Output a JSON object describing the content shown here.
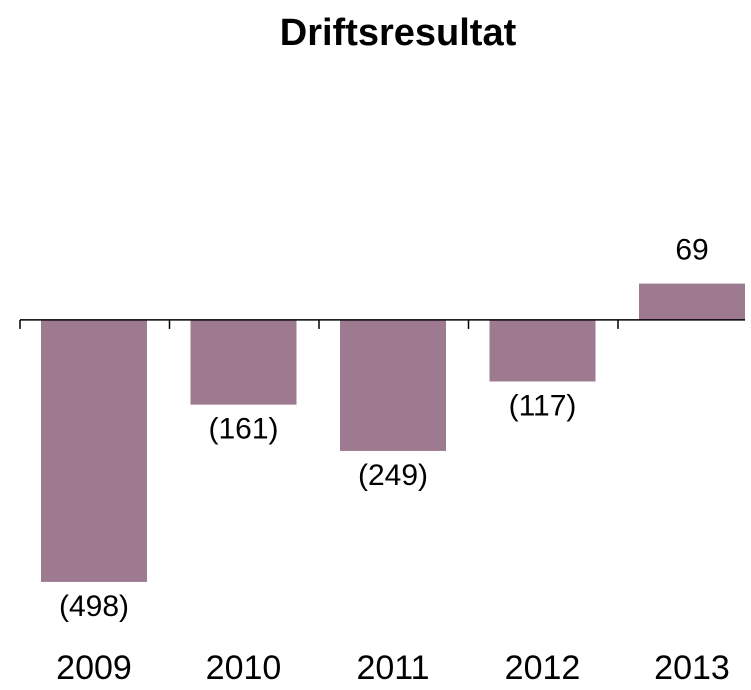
{
  "chart_data": {
    "type": "bar",
    "title": "Driftsresultat",
    "categories": [
      "2009",
      "2010",
      "2011",
      "2012",
      "2013"
    ],
    "values": [
      -498,
      -161,
      -249,
      -117,
      69
    ],
    "value_labels": [
      "(498)",
      "(161)",
      "(249)",
      "(117)",
      "69"
    ],
    "color": "#9e7a91",
    "ylim": [
      -600,
      150
    ]
  }
}
